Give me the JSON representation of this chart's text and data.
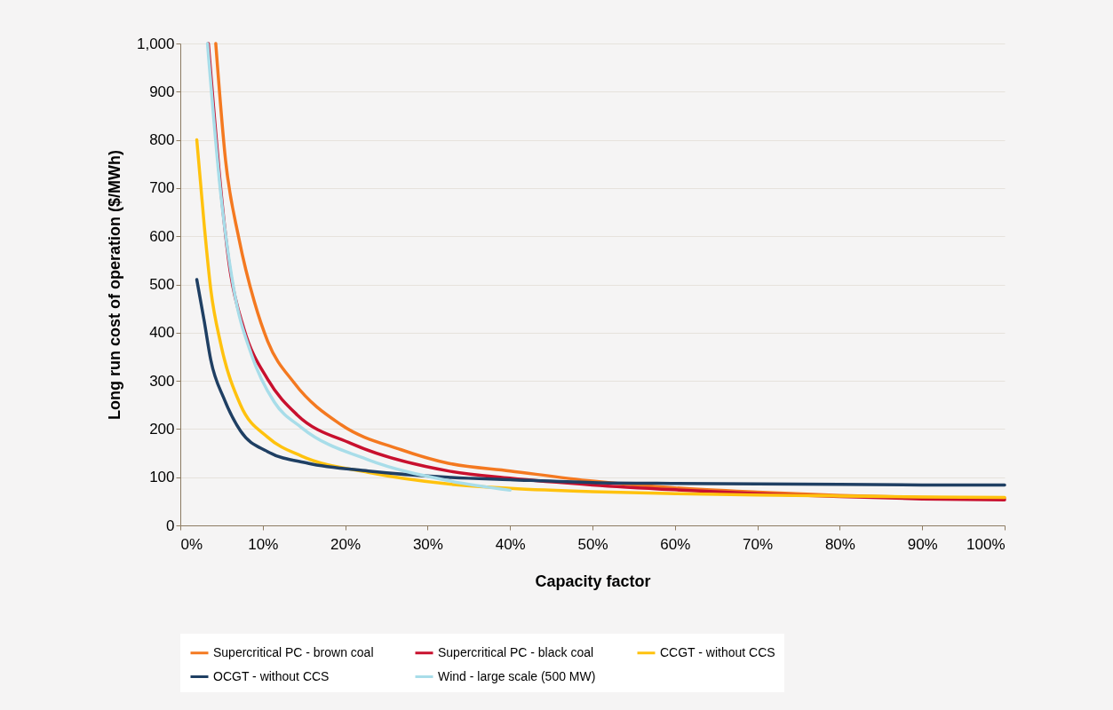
{
  "chart_data": {
    "type": "line",
    "xlabel": "Capacity factor",
    "ylabel": "Long run cost of operation ($/MWh)",
    "xlim": [
      0,
      100
    ],
    "ylim": [
      0,
      1000
    ],
    "xticks": [
      {
        "value": 0,
        "label": "0%"
      },
      {
        "value": 10,
        "label": "10%"
      },
      {
        "value": 20,
        "label": "20%"
      },
      {
        "value": 30,
        "label": "30%"
      },
      {
        "value": 40,
        "label": "40%"
      },
      {
        "value": 50,
        "label": "50%"
      },
      {
        "value": 60,
        "label": "60%"
      },
      {
        "value": 70,
        "label": "70%"
      },
      {
        "value": 80,
        "label": "80%"
      },
      {
        "value": 90,
        "label": "90%"
      },
      {
        "value": 100,
        "label": "100%"
      }
    ],
    "yticks": [
      0,
      100,
      200,
      300,
      400,
      500,
      600,
      700,
      800,
      900,
      {
        "value": 1000,
        "label": "1,000"
      }
    ],
    "grid": "y",
    "legend": "bottom",
    "marker": "none",
    "line_style": "solid",
    "series": [
      {
        "name": "Supercritical PC - brown coal",
        "color": "#f47920",
        "x": [
          4.3,
          5.5,
          7.1,
          9.0,
          10.6,
          13.8,
          19.5,
          26.8,
          32.5,
          40,
          50,
          60,
          70,
          80,
          90,
          100
        ],
        "values": [
          1000,
          756,
          596,
          463,
          382,
          296,
          209,
          157,
          129,
          113,
          92,
          78,
          69,
          62,
          58,
          56
        ]
      },
      {
        "name": "Supercritical PC - black coal",
        "color": "#c8102e",
        "x": [
          3.4,
          6.1,
          7.7,
          10.6,
          14.2,
          20.7,
          32.5,
          40,
          50,
          60,
          70,
          80,
          90,
          100
        ],
        "values": [
          1000,
          522,
          409,
          303,
          229,
          170,
          113,
          98,
          84,
          74,
          66,
          60,
          55,
          53
        ]
      },
      {
        "name": "CCGT - without CCS",
        "color": "#ffc20e",
        "x": [
          2,
          2.9,
          3.7,
          4.9,
          7.3,
          10.6,
          14.7,
          22.8,
          32.5,
          40,
          50,
          60,
          70,
          80,
          90,
          100
        ],
        "values": [
          800,
          623,
          489,
          377,
          250,
          183,
          144,
          110,
          86,
          77,
          70,
          66,
          63,
          61,
          59,
          58
        ]
      },
      {
        "name": "OCGT - without CCS",
        "color": "#1f3f63",
        "x": [
          2,
          2.9,
          3.7,
          5.3,
          7.3,
          10.6,
          15.5,
          22.8,
          32.5,
          40,
          50,
          60,
          70,
          80,
          90,
          100
        ],
        "values": [
          510,
          424,
          343,
          263,
          196,
          153,
          129,
          113,
          100,
          95,
          89,
          87,
          86,
          85,
          84,
          84
        ]
      },
      {
        "name": "Wind - large scale (500 MW)",
        "color": "#a8dde9",
        "x": [
          3.3,
          4.9,
          6.5,
          8.6,
          11.4,
          14.7,
          22.8,
          32.5,
          40
        ],
        "values": [
          1000,
          689,
          489,
          356,
          256,
          203,
          136,
          93,
          73
        ]
      }
    ]
  }
}
